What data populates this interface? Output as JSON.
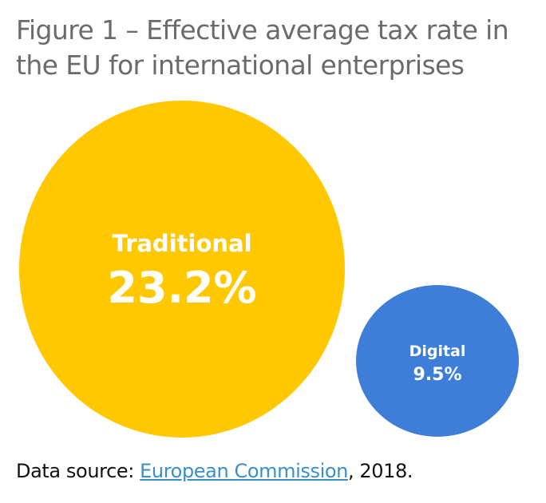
{
  "chart_data": {
    "type": "bubble",
    "title": "Figure 1 – Effective average tax rate in the EU for international enterprises",
    "series": [
      {
        "name": "Traditional",
        "value": 23.2,
        "label": "23.2%",
        "color": "#FFC800"
      },
      {
        "name": "Digital",
        "value": 9.5,
        "label": "9.5%",
        "color": "#3F7ED8"
      }
    ]
  },
  "source": {
    "prefix": "Data source: ",
    "link_text": "European Commission",
    "suffix": ", 2018."
  }
}
